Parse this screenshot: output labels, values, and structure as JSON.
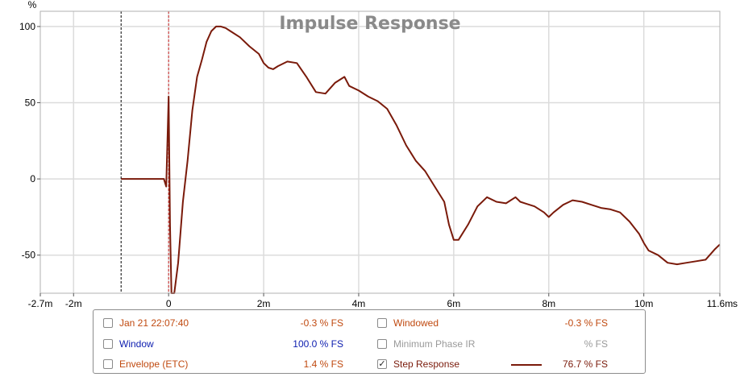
{
  "chart_data": {
    "type": "line",
    "title": "Impulse Response",
    "ylabel": "%",
    "xunit": "s",
    "xlim": [
      -0.0027,
      0.0116
    ],
    "ylim": [
      -75,
      110
    ],
    "x_ticks": [
      {
        "value": -0.0027,
        "label": "-2.7m"
      },
      {
        "value": -0.002,
        "label": "-2m"
      },
      {
        "value": 0,
        "label": "0"
      },
      {
        "value": 0.002,
        "label": "2m"
      },
      {
        "value": 0.004,
        "label": "4m"
      },
      {
        "value": 0.006,
        "label": "6m"
      },
      {
        "value": 0.008,
        "label": "8m"
      },
      {
        "value": 0.01,
        "label": "10m"
      },
      {
        "value": 0.0116,
        "label": "11.6m"
      }
    ],
    "y_ticks": [
      {
        "value": 100,
        "label": "100"
      },
      {
        "value": 50,
        "label": "50"
      },
      {
        "value": 0,
        "label": "0"
      },
      {
        "value": -50,
        "label": "-50"
      }
    ],
    "markers": [
      {
        "x": -0.001,
        "color": "#000000"
      },
      {
        "x": 0,
        "color": "#cc2222"
      }
    ],
    "grid": true,
    "series": [
      {
        "color": "#7a1a0a",
        "x": [
          -0.001,
          -0.0002,
          -0.00015,
          -0.0001,
          -5e-05,
          0,
          3e-05,
          6e-05,
          0.00012,
          0.0002,
          0.0003,
          0.0004,
          0.0005,
          0.0006,
          0.0007,
          0.0008,
          0.0009,
          0.001,
          0.0011,
          0.0012,
          0.0013,
          0.0015,
          0.0017,
          0.0019,
          0.002,
          0.0021,
          0.0022,
          0.0023,
          0.0025,
          0.0027,
          0.0029,
          0.0031,
          0.0033,
          0.0035,
          0.0037,
          0.0038,
          0.004,
          0.0042,
          0.0044,
          0.0046,
          0.0048,
          0.005,
          0.0052,
          0.0054,
          0.0056,
          0.0058,
          0.0059,
          0.006,
          0.0061,
          0.0063,
          0.0065,
          0.0067,
          0.0069,
          0.0071,
          0.0073,
          0.0074,
          0.0075,
          0.0077,
          0.0079,
          0.008,
          0.0081,
          0.0083,
          0.0085,
          0.0087,
          0.0089,
          0.0091,
          0.0093,
          0.0095,
          0.0097,
          0.0099,
          0.01,
          0.0101,
          0.0103,
          0.0105,
          0.0107,
          0.0109,
          0.0111,
          0.0113,
          0.0115,
          0.0116
        ],
        "values": [
          0,
          0,
          0,
          0,
          -5,
          54,
          -30,
          -75,
          -75,
          -55,
          -15,
          12,
          45,
          67,
          78,
          90,
          97,
          100,
          100,
          99,
          97,
          93,
          87,
          82,
          76,
          73,
          72,
          74,
          77,
          76,
          67,
          57,
          56,
          63,
          67,
          61,
          58,
          54,
          51,
          46,
          35,
          22,
          12,
          5,
          -5,
          -15,
          -30,
          -40,
          -40,
          -30,
          -18,
          -12,
          -15,
          -16,
          -12,
          -15,
          -16,
          -18,
          -22,
          -25,
          -22,
          -17,
          -14,
          -15,
          -17,
          -19,
          -20,
          -22,
          -28,
          -36,
          -42,
          -47,
          -50,
          -55,
          -56,
          -55,
          -54,
          -53,
          -46,
          -43
        ]
      }
    ]
  },
  "legend": {
    "items": [
      {
        "label": "Jan 21 22:07:40",
        "value": "-0.3 % FS",
        "checked": false,
        "color": "#c04a10"
      },
      {
        "label": "Windowed",
        "value": "-0.3 % FS",
        "checked": false,
        "color": "#c04a10"
      },
      {
        "label": "Window",
        "value": "100.0 % FS",
        "checked": false,
        "color": "#1020b0"
      },
      {
        "label": "Minimum Phase IR",
        "value": "% FS",
        "checked": false,
        "color": "#9a9a9a"
      },
      {
        "label": "Envelope (ETC)",
        "value": "1.4 % FS",
        "checked": false,
        "color": "#c04a10"
      },
      {
        "label": "Step Response",
        "value": "76.7 % FS",
        "checked": true,
        "color": "#7a1a0a"
      }
    ]
  }
}
